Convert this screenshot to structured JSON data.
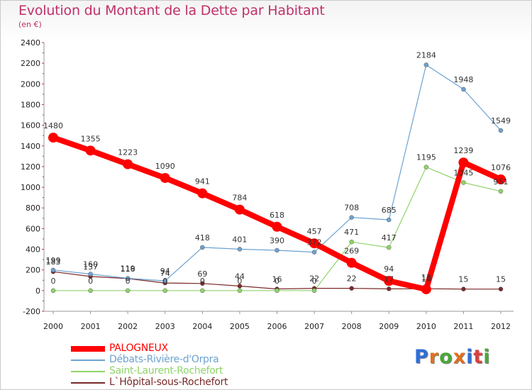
{
  "title": "Evolution du Montant de la Dette par Habitant",
  "subtitle": "(en €)",
  "logo": {
    "letters": [
      "P",
      "r",
      "o",
      "x",
      "i",
      "t",
      "i"
    ],
    "colors": [
      "#2f6fd6",
      "#e0701e",
      "#48a83a",
      "#e0701e",
      "#2f6fd6",
      "#d94040",
      "#48a83a"
    ]
  },
  "chart_data": {
    "type": "line",
    "x": [
      "2000",
      "2001",
      "2002",
      "2003",
      "2004",
      "2005",
      "2006",
      "2007",
      "2008",
      "2009",
      "2010",
      "2011",
      "2012"
    ],
    "ylim": [
      -200,
      2400
    ],
    "yticks": [
      "-200",
      "0",
      "200",
      "400",
      "600",
      "800",
      "1000",
      "1200",
      "1400",
      "1600",
      "1800",
      "2000",
      "2200",
      "2400"
    ],
    "grid": false,
    "legend": "bottom-left",
    "series": [
      {
        "name": "PALOGNEUX",
        "color": "#ff0000",
        "width": 8,
        "marker": 7,
        "values": [
          1480,
          1355,
          1223,
          1090,
          941,
          784,
          618,
          457,
          269,
          94,
          13,
          1239,
          1076
        ],
        "labels": [
          "1480",
          "1355",
          "1223",
          "1090",
          "941",
          "784",
          "618",
          "457",
          "269",
          "94",
          "13",
          "1239",
          "1076"
        ]
      },
      {
        "name": "Débats-Rivière-d'Orpra",
        "color": "#6da2d0",
        "width": 1.2,
        "marker": 3,
        "values": [
          199,
          160,
          119,
          94,
          418,
          401,
          390,
          372,
          708,
          685,
          2184,
          1948,
          1549
        ],
        "labels": [
          "199",
          "160",
          "119",
          "94",
          "418",
          "401",
          "390",
          "372",
          "708",
          "685",
          "2184",
          "1948",
          "1549"
        ]
      },
      {
        "name": "Saint-Laurent-Rochefort",
        "color": "#8fd46a",
        "width": 1.2,
        "marker": 3,
        "values": [
          0,
          0,
          0,
          0,
          0,
          0,
          0,
          0,
          471,
          417,
          1195,
          1045,
          961
        ],
        "labels": [
          "0",
          "0",
          "0",
          "0",
          "0",
          "0",
          "0",
          "0",
          "471",
          "417",
          "1195",
          "1045",
          "961"
        ]
      },
      {
        "name": "L`Hôpital-sous-Rochefort",
        "color": "#7a2a2a",
        "width": 1.2,
        "marker": 3,
        "values": [
          183,
          137,
          116,
          74,
          69,
          44,
          16,
          22,
          22,
          17,
          18,
          15,
          15
        ],
        "labels": [
          "183",
          "137",
          "116",
          "74",
          "69",
          "44",
          "16",
          "22",
          "22",
          "17",
          "18",
          "15",
          "15"
        ]
      }
    ]
  }
}
